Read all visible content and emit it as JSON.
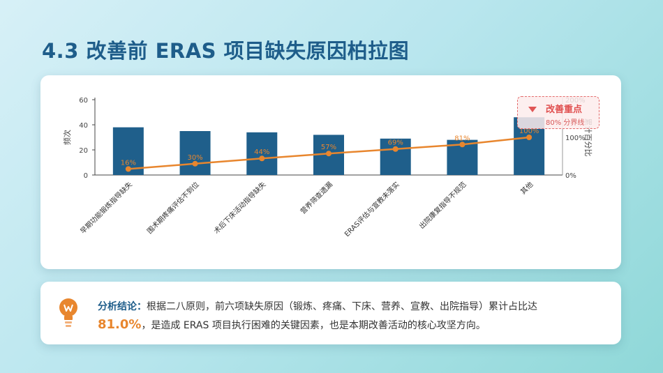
{
  "title": "4.3  改善前 ERAS 项目缺失原因柏拉图",
  "chart_data": {
    "type": "bar",
    "categories": [
      "早期功能锻炼指导缺失",
      "围术期疼痛评估不到位",
      "术后下床活动指导缺失",
      "营养筛查遗漏",
      "ERAS评估与宣教未落实",
      "出院康复指导不规范",
      "其他"
    ],
    "values": [
      38,
      35,
      34,
      32,
      29,
      28,
      46
    ],
    "line_series": {
      "values": [
        16,
        30,
        44,
        57,
        69,
        81,
        100
      ],
      "labels": [
        "16%",
        "30%",
        "44%",
        "57%",
        "69%",
        "81%",
        "100%"
      ]
    },
    "ylabel": "频次",
    "y2label": "累计百分比",
    "ylim": [
      0,
      60
    ],
    "yticks": [
      "0",
      "20",
      "40",
      "60"
    ],
    "y2lim": [
      0,
      200
    ],
    "y2ticks": [
      "0%",
      "100%",
      "200%"
    ],
    "grid": false,
    "bar_color": "#1f5f8b",
    "line_color": "#e8862e"
  },
  "callout": {
    "label": "改善重点",
    "sub": "80% 分界线"
  },
  "conclusion": {
    "lead": "分析结论：",
    "text1": "根据二八原则，前六项缺失原因（锻炼、疼痛、下床、营养、宣教、出院指导）累计占比达",
    "highlight": "81.0%",
    "text2": "，是造成 ERAS 项目执行困难的关键因素，也是本期改善活动的核心攻坚方向。"
  }
}
